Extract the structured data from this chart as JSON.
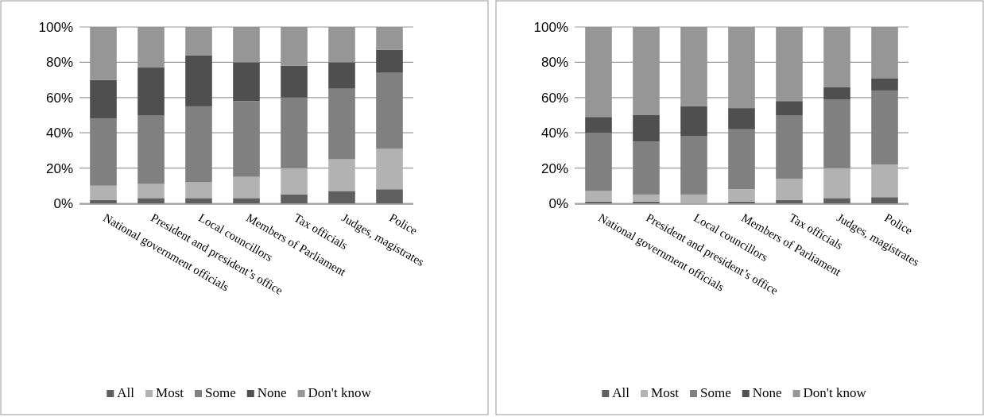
{
  "chart_data": [
    {
      "type": "bar",
      "stacked": true,
      "categories": [
        "National government officials",
        "President and president’s office",
        "Local councillors",
        "Members of Parliament",
        "Tax officials",
        "Judges, magistrates",
        "Police"
      ],
      "ylim": [
        0,
        100
      ],
      "yticks": [
        {
          "value": 0,
          "label": "0%"
        },
        {
          "value": 20,
          "label": "20%"
        },
        {
          "value": 40,
          "label": "40%"
        },
        {
          "value": 60,
          "label": "60%"
        },
        {
          "value": 80,
          "label": "80%"
        },
        {
          "value": 100,
          "label": "100%"
        }
      ],
      "grid": "y",
      "legend": "bottom",
      "series": [
        {
          "name": "All",
          "color": "#5f5f5f",
          "values": [
            2,
            3,
            3,
            3,
            5,
            7,
            8
          ]
        },
        {
          "name": "Most",
          "color": "#b2b2b2",
          "values": [
            8,
            8,
            9,
            12,
            15,
            18,
            23
          ]
        },
        {
          "name": "Some",
          "color": "#808080",
          "values": [
            38,
            39,
            43,
            43,
            40,
            40,
            43
          ]
        },
        {
          "name": "None",
          "color": "#4f4f4f",
          "values": [
            22,
            27,
            29,
            22,
            18,
            15,
            13
          ]
        },
        {
          "name": "Don't know",
          "color": "#969696",
          "values": [
            30,
            23,
            16,
            20,
            22,
            20,
            13
          ]
        }
      ]
    },
    {
      "type": "bar",
      "stacked": true,
      "categories": [
        "National government officials",
        "President and president’s office",
        "Local councillors",
        "Members of Parliament",
        "Tax officials",
        "Judges, magistrates",
        "Police"
      ],
      "ylim": [
        0,
        100
      ],
      "yticks": [
        {
          "value": 0,
          "label": "0%"
        },
        {
          "value": 20,
          "label": "20%"
        },
        {
          "value": 40,
          "label": "40%"
        },
        {
          "value": 60,
          "label": "60%"
        },
        {
          "value": 80,
          "label": "80%"
        },
        {
          "value": 100,
          "label": "100%"
        }
      ],
      "grid": "y",
      "legend": "bottom",
      "series": [
        {
          "name": "All",
          "color": "#5f5f5f",
          "values": [
            1,
            1,
            0,
            1,
            2,
            3,
            3.5
          ]
        },
        {
          "name": "Most",
          "color": "#b2b2b2",
          "values": [
            6,
            4,
            5,
            7,
            12,
            17,
            18.5
          ]
        },
        {
          "name": "Some",
          "color": "#808080",
          "values": [
            33,
            30,
            33,
            34,
            36,
            39,
            42
          ]
        },
        {
          "name": "None",
          "color": "#4f4f4f",
          "values": [
            9,
            15,
            17,
            12,
            8,
            7,
            7
          ]
        },
        {
          "name": "Don't know",
          "color": "#969696",
          "values": [
            51,
            50,
            45,
            46,
            42,
            34,
            29
          ]
        }
      ]
    }
  ]
}
